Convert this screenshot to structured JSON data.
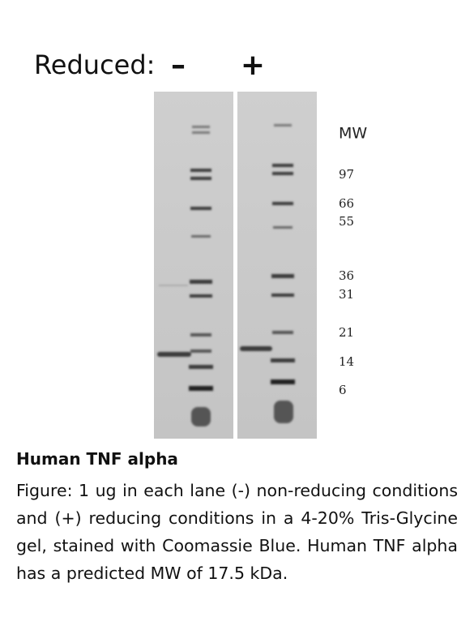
{
  "header": {
    "label": "Reduced:",
    "lanes": [
      "–",
      "+"
    ]
  },
  "markers": {
    "title": "MW",
    "labels": [
      "97",
      "66",
      "55",
      "36",
      "31",
      "21",
      "14",
      "6"
    ]
  },
  "caption": {
    "title": "Human TNF alpha",
    "text": "Figure:  1 ug in each lane (-) non-reducing conditions and (+) reducing conditions in a 4-20% Tris-Glycine gel, stained with Coomassie Blue.  Human TNF alpha has a predicted MW of 17.5 kDa."
  }
}
